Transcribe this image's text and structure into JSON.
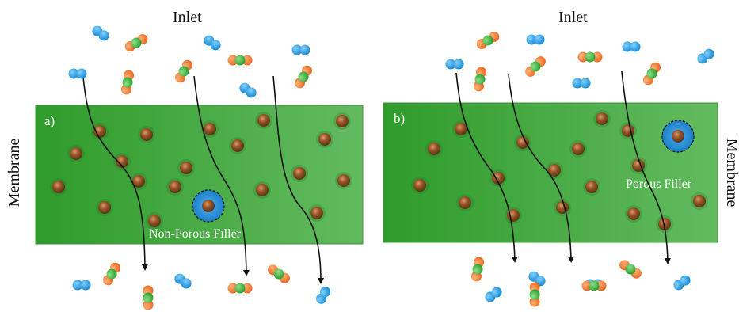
{
  "panels": [
    {
      "id": "a",
      "panel_label": "a)",
      "inlet_label": "Inlet",
      "side_label": "Membrane",
      "filler_label": "Non-Porous Filler"
    },
    {
      "id": "b",
      "panel_label": "b)",
      "inlet_label": "Inlet",
      "side_label": "Membrane",
      "filler_label": "Porous Filler"
    }
  ],
  "colors": {
    "membrane_dark": "#2e9a2a",
    "membrane_light": "#5cb85a",
    "particle": "#8a4a22",
    "filler_blue": "#2c8fd6",
    "molecule_blue": "#1c9be0",
    "molecule_orange": "#f0782a",
    "molecule_green": "#3cb43c",
    "path_line": "#111111"
  }
}
